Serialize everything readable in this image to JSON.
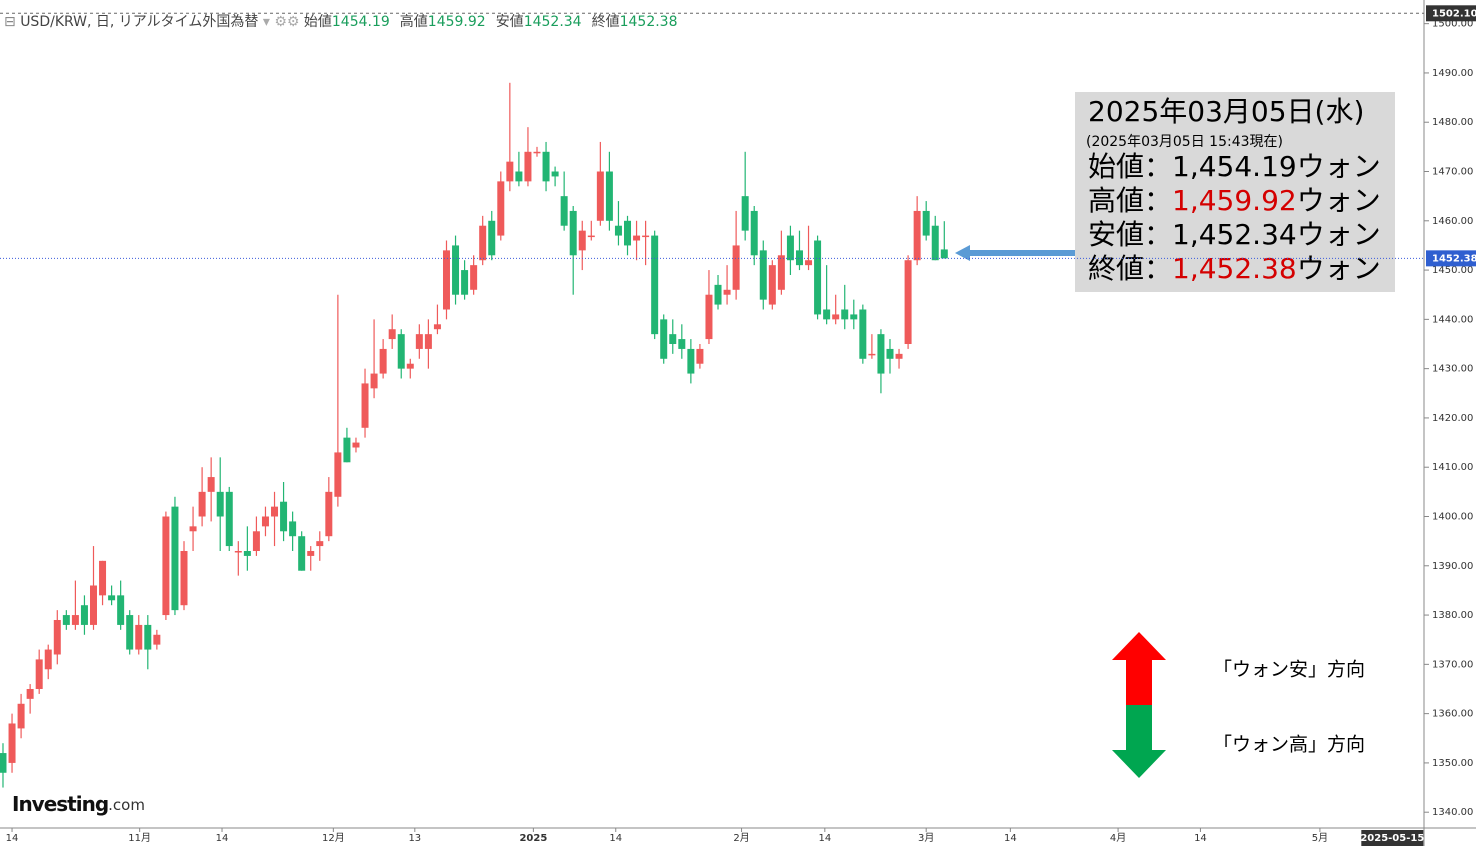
{
  "chart_data": {
    "type": "candlestick",
    "header": {
      "symbol": "USD/KRW, 日, リアルタイム外国為替",
      "fields": [
        {
          "label": "始値",
          "value": 1454.19
        },
        {
          "label": "高値",
          "value": 1459.92
        },
        {
          "label": "安値",
          "value": 1452.34
        },
        {
          "label": "終値",
          "value": 1452.38
        }
      ]
    },
    "info_box": {
      "date": "2025年03月05日(水)",
      "note": "(2025年03月05日 15:43現在)",
      "unit": "ウォン",
      "rows": [
        {
          "label": "始値：",
          "value": {
            "value": 1454.19,
            "label": "1,454.19"
          },
          "color": "#000000"
        },
        {
          "label": "高値：",
          "value": {
            "value": 1459.92,
            "label": "1,459.92"
          },
          "color": "#d40000"
        },
        {
          "label": "安値：",
          "value": {
            "value": 1452.34,
            "label": "1,452.34"
          },
          "color": "#000000"
        },
        {
          "label": "終値：",
          "value": {
            "value": 1452.38,
            "label": "1,452.38"
          },
          "color": "#d40000"
        }
      ]
    },
    "legend": [
      {
        "name": "「ウォン安」方向",
        "color": "#ff0000"
      },
      {
        "name": "「ウォン高」方向",
        "color": "#00a650"
      }
    ],
    "brand": {
      "name": "Investing",
      "suffix": ".com"
    },
    "up_color": "#ef5a5a",
    "down_color": "#22b573",
    "last_price": 1452.38,
    "top_price": {
      "value": 1502.1,
      "label": "1502.10"
    },
    "ylim": [
      1337.2,
      1504.8
    ],
    "yticks": [
      {
        "value": 1340,
        "label": "1340.00"
      },
      {
        "value": 1350,
        "label": "1350.00"
      },
      {
        "value": 1360,
        "label": "1360.00"
      },
      {
        "value": 1370,
        "label": "1370.00"
      },
      {
        "value": 1380,
        "label": "1380.00"
      },
      {
        "value": 1390,
        "label": "1390.00"
      },
      {
        "value": 1400,
        "label": "1400.00"
      },
      {
        "value": 1410,
        "label": "1410.00"
      },
      {
        "value": 1420,
        "label": "1420.00"
      },
      {
        "value": 1430,
        "label": "1430.00"
      },
      {
        "value": 1440,
        "label": "1440.00"
      },
      {
        "value": 1450,
        "label": "1450.00"
      },
      {
        "value": 1460,
        "label": "1460.00"
      },
      {
        "value": 1470,
        "label": "1470.00"
      },
      {
        "value": 1480,
        "label": "1480.00"
      },
      {
        "value": 1490,
        "label": "1490.00"
      },
      {
        "value": 1500,
        "label": "1500.00"
      }
    ],
    "xlim": [
      -0.33,
      157
    ],
    "xticks": [
      {
        "value": 1,
        "label": "14"
      },
      {
        "value": 15.1,
        "label": "11月"
      },
      {
        "value": 24.2,
        "label": "14"
      },
      {
        "value": 36.5,
        "label": "12月"
      },
      {
        "value": 45.5,
        "label": "13"
      },
      {
        "value": 58.6,
        "label": "2025"
      },
      {
        "value": 67.7,
        "label": "14"
      },
      {
        "value": 81.6,
        "label": "2月"
      },
      {
        "value": 90.8,
        "label": "14"
      },
      {
        "value": 102,
        "label": "3月"
      },
      {
        "value": 111.3,
        "label": "14"
      },
      {
        "value": 123.2,
        "label": "4月"
      },
      {
        "value": 132.3,
        "label": "14"
      },
      {
        "value": 145.5,
        "label": "5月"
      }
    ],
    "cursor_x": {
      "value": 153.5,
      "label": "2025-05-15"
    },
    "ohlc": [
      [
        1352,
        1354,
        1345,
        1348
      ],
      [
        1350,
        1360,
        1348,
        1358
      ],
      [
        1357,
        1364,
        1355,
        1362
      ],
      [
        1363,
        1366,
        1360,
        1365
      ],
      [
        1365,
        1373,
        1364,
        1371
      ],
      [
        1369,
        1374,
        1367,
        1373
      ],
      [
        1372,
        1381,
        1370,
        1379
      ],
      [
        1380,
        1381,
        1377,
        1378
      ],
      [
        1378,
        1387,
        1377,
        1380
      ],
      [
        1382,
        1384,
        1376,
        1378
      ],
      [
        1378,
        1394,
        1377,
        1386
      ],
      [
        1384,
        1391,
        1382,
        1391
      ],
      [
        1384,
        1386,
        1382,
        1383
      ],
      [
        1384,
        1387,
        1377,
        1378
      ],
      [
        1380,
        1381,
        1372,
        1373
      ],
      [
        1373,
        1380,
        1372,
        1378
      ],
      [
        1378,
        1380,
        1369,
        1373
      ],
      [
        1374,
        1377,
        1373,
        1376
      ],
      [
        1380,
        1401,
        1379,
        1400
      ],
      [
        1402,
        1404,
        1380,
        1381
      ],
      [
        1382,
        1395,
        1381,
        1393
      ],
      [
        1397,
        1402,
        1393,
        1398
      ],
      [
        1400,
        1410,
        1398,
        1405
      ],
      [
        1405,
        1412,
        1399,
        1408
      ],
      [
        1405,
        1412,
        1393,
        1400
      ],
      [
        1405,
        1406,
        1393,
        1394
      ],
      [
        1393,
        1395,
        1388,
        1393
      ],
      [
        1393,
        1398,
        1389,
        1392
      ],
      [
        1393,
        1400,
        1392,
        1397
      ],
      [
        1398,
        1402,
        1396,
        1400
      ],
      [
        1400,
        1405,
        1394,
        1402
      ],
      [
        1403,
        1407,
        1395,
        1397
      ],
      [
        1399,
        1401,
        1393,
        1396
      ],
      [
        1396,
        1397,
        1389,
        1389
      ],
      [
        1392,
        1394,
        1389,
        1393
      ],
      [
        1394,
        1397,
        1391,
        1395
      ],
      [
        1396,
        1408,
        1395,
        1405
      ],
      [
        1404,
        1445,
        1402,
        1413
      ],
      [
        1416,
        1418,
        1411,
        1411
      ],
      [
        1414,
        1416,
        1413,
        1415
      ],
      [
        1418,
        1430,
        1416,
        1427
      ],
      [
        1426,
        1440,
        1424,
        1429
      ],
      [
        1429,
        1436,
        1428,
        1434
      ],
      [
        1436,
        1441,
        1434,
        1438
      ],
      [
        1437,
        1438,
        1428,
        1430
      ],
      [
        1430,
        1432,
        1428,
        1431
      ],
      [
        1434,
        1439,
        1432,
        1437
      ],
      [
        1434,
        1440,
        1430,
        1437
      ],
      [
        1438,
        1443,
        1437,
        1439
      ],
      [
        1442,
        1456,
        1440,
        1454
      ],
      [
        1455,
        1457,
        1443,
        1445
      ],
      [
        1450,
        1452,
        1444,
        1445
      ],
      [
        1446,
        1453,
        1445,
        1451
      ],
      [
        1452,
        1461,
        1451,
        1459
      ],
      [
        1460,
        1462,
        1452,
        1453
      ],
      [
        1457,
        1470,
        1456,
        1468
      ],
      [
        1468,
        1488,
        1466,
        1472
      ],
      [
        1470,
        1474,
        1467,
        1468
      ],
      [
        1468,
        1479,
        1467,
        1474
      ],
      [
        1474,
        1475,
        1473,
        1474
      ],
      [
        1474,
        1476,
        1466,
        1468
      ],
      [
        1470,
        1471,
        1467,
        1469
      ],
      [
        1465,
        1470,
        1458,
        1459
      ],
      [
        1462,
        1463,
        1445,
        1453
      ],
      [
        1454,
        1460,
        1450,
        1458
      ],
      [
        1457,
        1460,
        1456,
        1457
      ],
      [
        1460,
        1476,
        1459,
        1470
      ],
      [
        1470,
        1474,
        1458,
        1460
      ],
      [
        1459,
        1464,
        1455,
        1457
      ],
      [
        1460,
        1461,
        1453,
        1455
      ],
      [
        1456,
        1460,
        1452,
        1457
      ],
      [
        1457,
        1460,
        1451,
        1457
      ],
      [
        1457,
        1458,
        1436,
        1437
      ],
      [
        1440,
        1441,
        1431,
        1432
      ],
      [
        1437,
        1440,
        1433,
        1435
      ],
      [
        1436,
        1439,
        1432,
        1434
      ],
      [
        1434,
        1436,
        1427,
        1429
      ],
      [
        1431,
        1435,
        1430,
        1434
      ],
      [
        1436,
        1450,
        1435,
        1445
      ],
      [
        1447,
        1449,
        1442,
        1443
      ],
      [
        1445,
        1451,
        1443,
        1446
      ],
      [
        1446,
        1462,
        1444,
        1455
      ],
      [
        1465,
        1474,
        1456,
        1458
      ],
      [
        1462,
        1463,
        1451,
        1453
      ],
      [
        1454,
        1456,
        1442,
        1444
      ],
      [
        1443,
        1452,
        1442,
        1451
      ],
      [
        1446,
        1458,
        1445,
        1453
      ],
      [
        1457,
        1459,
        1449,
        1452
      ],
      [
        1454,
        1458,
        1450,
        1451
      ],
      [
        1451,
        1459,
        1450,
        1452
      ],
      [
        1456,
        1457,
        1440,
        1441
      ],
      [
        1442,
        1451,
        1439,
        1440
      ],
      [
        1440,
        1445,
        1439,
        1441
      ],
      [
        1442,
        1447,
        1438,
        1440
      ],
      [
        1441,
        1444,
        1438,
        1440
      ],
      [
        1442,
        1443,
        1431,
        1432
      ],
      [
        1433,
        1437,
        1432,
        1433
      ],
      [
        1437,
        1438,
        1425,
        1429
      ],
      [
        1434,
        1436,
        1429,
        1432
      ],
      [
        1432,
        1434,
        1430,
        1433
      ],
      [
        1435,
        1453,
        1434,
        1452
      ],
      [
        1452,
        1465,
        1451,
        1462
      ],
      [
        1462,
        1464,
        1456,
        1457
      ],
      [
        1459,
        1461,
        1452,
        1452
      ],
      [
        1454.19,
        1459.92,
        1452.34,
        1452.38
      ]
    ]
  }
}
